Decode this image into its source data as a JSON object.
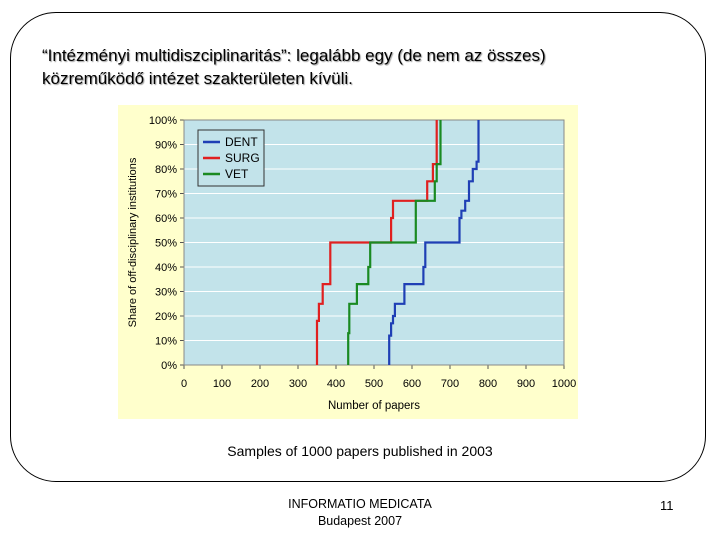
{
  "slide": {
    "title_line1": "“Intézményi multidiszciplinaritás”: legalább egy (de nem az összes)",
    "title_line2": "közreműködő intézet szakterületen kívüli.",
    "caption": "Samples of 1000 papers published in 2003",
    "footer_line1": "INFORMATIO MEDICATA",
    "footer_line2": "Budapest 2007",
    "page_number": "11"
  },
  "colors": {
    "plot_background": "#c2e3ea",
    "panel_background": "#ffffcc",
    "gridline": "#ffffff",
    "DENT": "#1f3fb5",
    "SURG": "#e02020",
    "VET": "#1a8a22"
  },
  "chart_data": {
    "type": "line",
    "step": true,
    "title": "",
    "xlabel": "Number of papers",
    "ylabel": "Share of off-disciplinary institutions",
    "xlim": [
      0,
      1000
    ],
    "ylim": [
      0,
      100
    ],
    "x_ticks": [
      "0",
      "100",
      "200",
      "300",
      "400",
      "500",
      "600",
      "700",
      "800",
      "900",
      "1000"
    ],
    "y_ticks": [
      "0%",
      "10%",
      "20%",
      "30%",
      "40%",
      "50%",
      "60%",
      "70%",
      "80%",
      "90%",
      "100%"
    ],
    "grid": "horizontal",
    "legend_position": "top-left",
    "series": [
      {
        "name": "DENT",
        "color": "#1f3fb5",
        "points": [
          [
            540,
            0
          ],
          [
            540,
            12
          ],
          [
            545,
            12
          ],
          [
            545,
            17
          ],
          [
            550,
            17
          ],
          [
            550,
            20
          ],
          [
            555,
            20
          ],
          [
            555,
            25
          ],
          [
            580,
            25
          ],
          [
            580,
            33
          ],
          [
            630,
            33
          ],
          [
            630,
            40
          ],
          [
            635,
            40
          ],
          [
            635,
            50
          ],
          [
            725,
            50
          ],
          [
            725,
            60
          ],
          [
            730,
            60
          ],
          [
            730,
            63
          ],
          [
            740,
            63
          ],
          [
            740,
            67
          ],
          [
            750,
            67
          ],
          [
            750,
            75
          ],
          [
            760,
            75
          ],
          [
            760,
            80
          ],
          [
            770,
            80
          ],
          [
            770,
            83
          ],
          [
            775,
            83
          ],
          [
            775,
            100
          ]
        ]
      },
      {
        "name": "SURG",
        "color": "#e02020",
        "points": [
          [
            350,
            0
          ],
          [
            350,
            18
          ],
          [
            355,
            18
          ],
          [
            355,
            25
          ],
          [
            365,
            25
          ],
          [
            365,
            33
          ],
          [
            385,
            33
          ],
          [
            385,
            50
          ],
          [
            545,
            50
          ],
          [
            545,
            60
          ],
          [
            550,
            60
          ],
          [
            550,
            67
          ],
          [
            640,
            67
          ],
          [
            640,
            75
          ],
          [
            655,
            75
          ],
          [
            655,
            82
          ],
          [
            665,
            82
          ],
          [
            665,
            100
          ]
        ]
      },
      {
        "name": "VET",
        "color": "#1a8a22",
        "points": [
          [
            432,
            0
          ],
          [
            432,
            13
          ],
          [
            435,
            13
          ],
          [
            435,
            25
          ],
          [
            455,
            25
          ],
          [
            455,
            33
          ],
          [
            485,
            33
          ],
          [
            485,
            40
          ],
          [
            490,
            40
          ],
          [
            490,
            50
          ],
          [
            610,
            50
          ],
          [
            610,
            67
          ],
          [
            660,
            67
          ],
          [
            660,
            75
          ],
          [
            665,
            75
          ],
          [
            665,
            82
          ],
          [
            675,
            82
          ],
          [
            675,
            100
          ]
        ]
      }
    ]
  }
}
